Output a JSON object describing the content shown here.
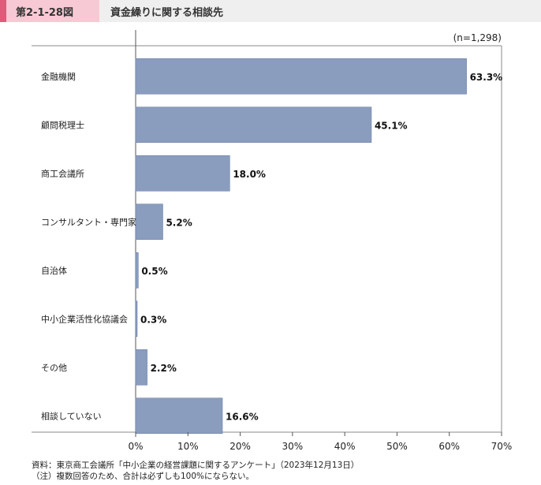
{
  "header": {
    "figure_label": "第2-1-28図",
    "title": "資金繰りに関する相談先"
  },
  "chart_data": {
    "type": "bar",
    "orientation": "horizontal",
    "categories": [
      "金融機関",
      "顧問税理士",
      "商工会議所",
      "コンサルタント・専門家",
      "自治体",
      "中小企業活性化協議会",
      "その他",
      "相談していない"
    ],
    "values": [
      63.3,
      45.1,
      18.0,
      5.2,
      0.5,
      0.3,
      2.2,
      16.6
    ],
    "value_labels": [
      "63.3%",
      "45.1%",
      "18.0%",
      "5.2%",
      "0.5%",
      "0.3%",
      "2.2%",
      "16.6%"
    ],
    "xlim": [
      0,
      70
    ],
    "xticks": [
      0,
      10,
      20,
      30,
      40,
      50,
      60,
      70
    ],
    "xtick_labels": [
      "0%",
      "10%",
      "20%",
      "30%",
      "40%",
      "50%",
      "60%",
      "70%"
    ],
    "sample_note": "(n=1,298)",
    "bar_color": "#8a9dbf",
    "bar_border": "#6f82a6",
    "grid": false
  },
  "footnotes": [
    "資料：東京商工会議所「中小企業の経営課題に関するアンケート」（2023年12月13日）",
    "（注）複数回答のため、合計は必ずしも100%にならない。"
  ]
}
